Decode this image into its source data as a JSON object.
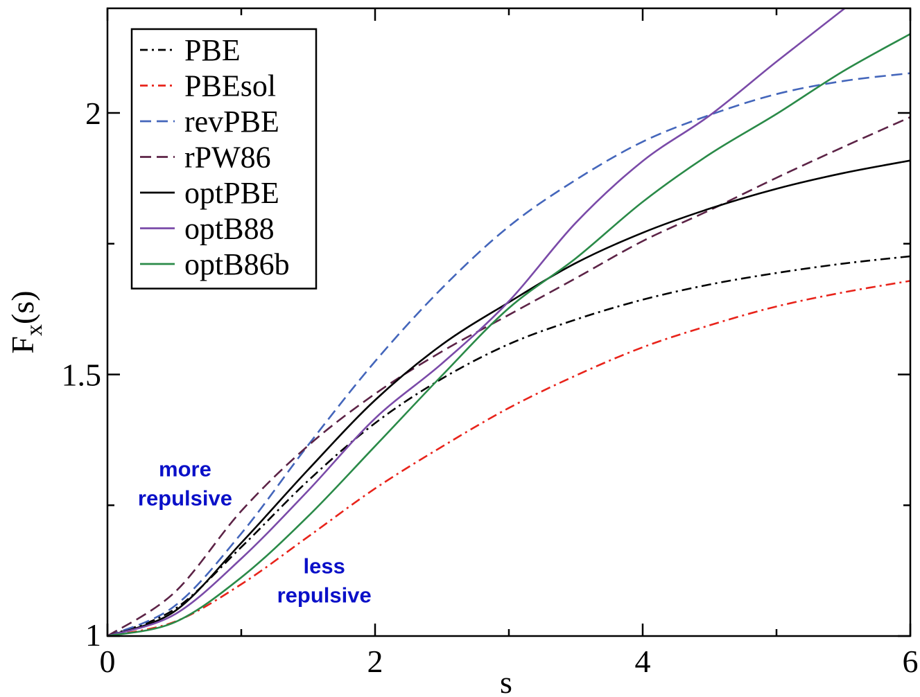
{
  "chart_data": {
    "type": "line",
    "xlabel": "s",
    "ylabel_main": "F",
    "ylabel_sub": "x",
    "ylabel_tail": "(s)",
    "xlim": [
      0,
      6
    ],
    "ylim": [
      1,
      2.2
    ],
    "x_ticks": [
      {
        "value": 0,
        "label": "0"
      },
      {
        "value": 2,
        "label": "2"
      },
      {
        "value": 4,
        "label": "4"
      },
      {
        "value": 6,
        "label": "6"
      }
    ],
    "x_minor_ticks": [
      1,
      3,
      5
    ],
    "y_ticks": [
      {
        "value": 1,
        "label": "1"
      },
      {
        "value": 1.5,
        "label": "1.5"
      },
      {
        "value": 2,
        "label": "2"
      }
    ],
    "y_minor_ticks": [
      1.25,
      1.75
    ],
    "grid": false,
    "legend_position": "top-left",
    "series": [
      {
        "name": "PBE",
        "color": "#000000",
        "dash": "dashdot",
        "x": [
          0,
          0.5,
          1,
          1.5,
          2,
          2.5,
          3,
          3.5,
          4,
          4.5,
          5,
          5.5,
          6
        ],
        "y": [
          1.0,
          1.051,
          1.17,
          1.297,
          1.407,
          1.492,
          1.558,
          1.605,
          1.643,
          1.672,
          1.694,
          1.712,
          1.726
        ]
      },
      {
        "name": "PBEsol",
        "color": "#e8231a",
        "dash": "dashdot",
        "x": [
          0,
          0.5,
          1,
          1.5,
          2,
          2.5,
          3,
          3.5,
          4,
          4.5,
          5,
          5.5,
          6
        ],
        "y": [
          1.0,
          1.027,
          1.099,
          1.19,
          1.282,
          1.362,
          1.436,
          1.498,
          1.552,
          1.594,
          1.63,
          1.657,
          1.679
        ]
      },
      {
        "name": "revPBE",
        "color": "#4466bb",
        "dash": "dashed",
        "x": [
          0,
          0.5,
          1,
          1.5,
          2,
          2.5,
          3,
          3.5,
          4,
          4.5,
          5,
          5.5,
          6
        ],
        "y": [
          1.0,
          1.057,
          1.196,
          1.365,
          1.525,
          1.665,
          1.783,
          1.872,
          1.945,
          1.996,
          2.036,
          2.061,
          2.076
        ]
      },
      {
        "name": "rPW86",
        "color": "#5c2346",
        "dash": "dashed",
        "x": [
          0,
          0.5,
          1,
          1.5,
          2,
          2.5,
          3,
          3.5,
          4,
          4.5,
          5,
          5.5,
          6
        ],
        "y": [
          1.0,
          1.083,
          1.239,
          1.364,
          1.463,
          1.544,
          1.614,
          1.684,
          1.755,
          1.814,
          1.876,
          1.935,
          1.992
        ]
      },
      {
        "name": "optPBE",
        "color": "#000000",
        "dash": "solid",
        "x": [
          0,
          0.5,
          1,
          1.5,
          2,
          2.5,
          3,
          3.5,
          4,
          4.5,
          5,
          5.5,
          6
        ],
        "y": [
          1.0,
          1.047,
          1.178,
          1.318,
          1.451,
          1.557,
          1.638,
          1.713,
          1.771,
          1.817,
          1.855,
          1.885,
          1.909
        ]
      },
      {
        "name": "optB88",
        "color": "#7a4aa8",
        "dash": "solid",
        "x": [
          0,
          0.5,
          1,
          1.5,
          2,
          2.5,
          3,
          3.5,
          4,
          4.5,
          5,
          5.5
        ],
        "y": [
          1.0,
          1.041,
          1.148,
          1.278,
          1.416,
          1.521,
          1.64,
          1.79,
          1.908,
          1.995,
          2.098,
          2.198
        ]
      },
      {
        "name": "optB86b",
        "color": "#2a8a48",
        "dash": "solid",
        "x": [
          0,
          0.5,
          1,
          1.5,
          2,
          2.5,
          3,
          3.5,
          4,
          4.5,
          5,
          5.5,
          6
        ],
        "y": [
          1.0,
          1.026,
          1.112,
          1.229,
          1.363,
          1.498,
          1.627,
          1.722,
          1.83,
          1.921,
          1.998,
          2.08,
          2.151
        ]
      }
    ],
    "annotations": [
      {
        "id": "more",
        "lines": [
          "more",
          "repulsive"
        ],
        "color": "#0a10c8",
        "x": 0.58,
        "y": 1.305
      },
      {
        "id": "less",
        "lines": [
          "less",
          "repulsive"
        ],
        "color": "#0a10c8",
        "x": 1.62,
        "y": 1.12
      }
    ]
  }
}
